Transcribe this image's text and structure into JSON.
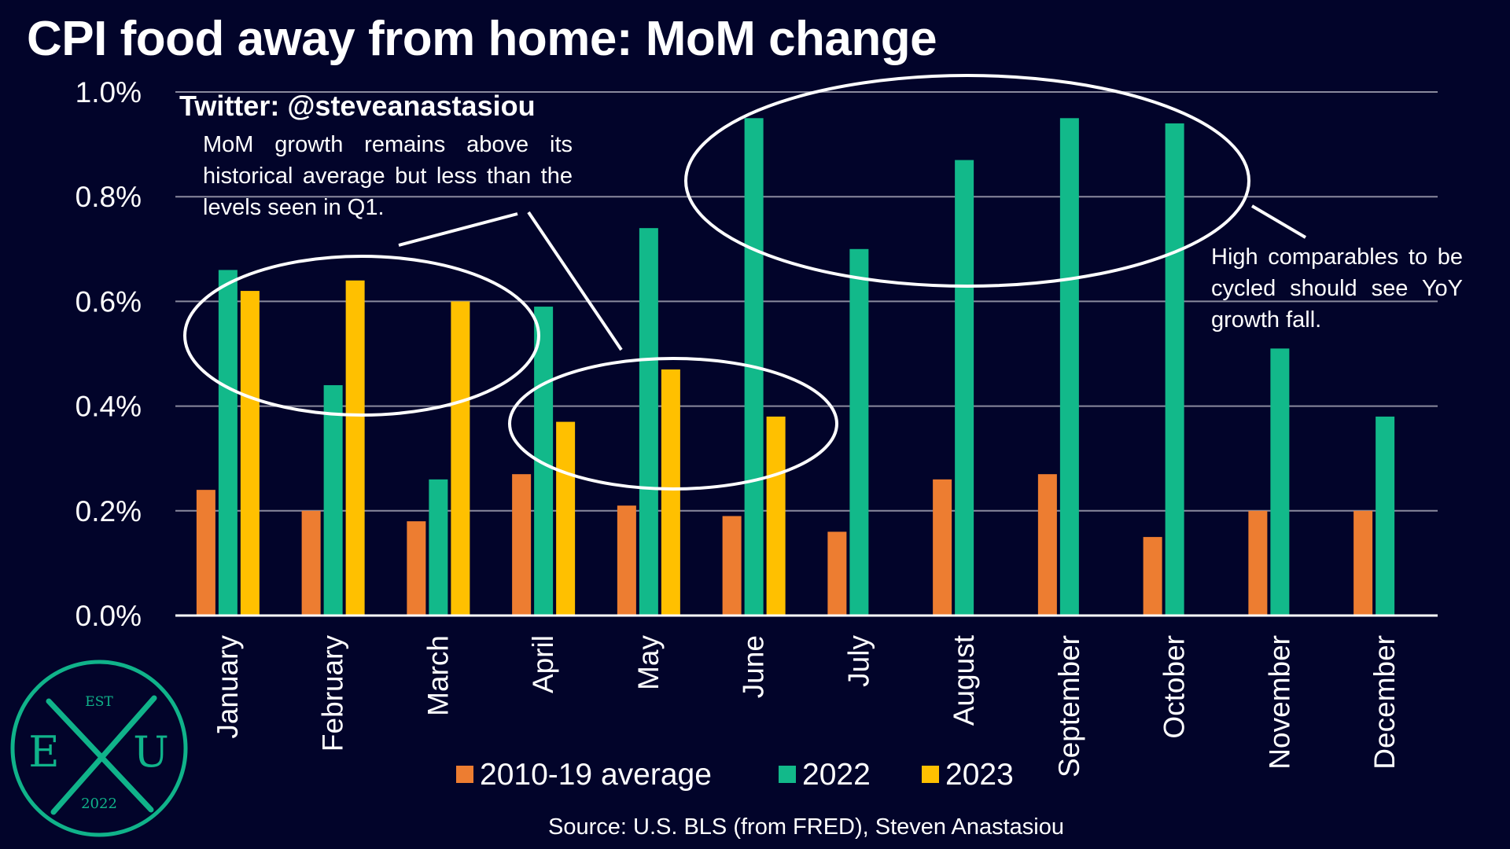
{
  "header": {
    "title": "CPI food away from home: MoM change",
    "handle": "Twitter: @steveanastasiou"
  },
  "annotations": {
    "q1_note": "MoM growth remains above its historical average but less than the levels seen in Q1.",
    "high_note": "High comparables to be cycled should see YoY growth fall."
  },
  "source": "Source: U.S. BLS (from FRED), Steven Anastasiou",
  "logo": {
    "top": "EST",
    "left": "E",
    "right": "U",
    "bottom": "2022",
    "color": "#10b38a"
  },
  "chart_data": {
    "type": "bar",
    "title": "CPI food away from home: MoM change",
    "xlabel": "",
    "ylabel": "",
    "ylim": [
      0,
      1.0
    ],
    "yticks": [
      "0.0%",
      "0.2%",
      "0.4%",
      "0.6%",
      "0.8%",
      "1.0%"
    ],
    "grid": true,
    "legend_position": "bottom",
    "categories": [
      "January",
      "February",
      "March",
      "April",
      "May",
      "June",
      "July",
      "August",
      "September",
      "October",
      "November",
      "December"
    ],
    "series": [
      {
        "name": "2010-19 average",
        "color": "#ed7d31",
        "values": [
          0.24,
          0.2,
          0.18,
          0.27,
          0.21,
          0.19,
          0.16,
          0.26,
          0.27,
          0.15,
          0.2,
          0.2
        ]
      },
      {
        "name": "2022",
        "color": "#12b98a",
        "values": [
          0.66,
          0.44,
          0.26,
          0.59,
          0.74,
          0.95,
          0.7,
          0.87,
          0.95,
          0.94,
          0.51,
          0.38
        ]
      },
      {
        "name": "2023",
        "color": "#ffc000",
        "values": [
          0.62,
          0.64,
          0.6,
          0.37,
          0.47,
          0.38,
          null,
          null,
          null,
          null,
          null,
          null
        ]
      }
    ]
  }
}
